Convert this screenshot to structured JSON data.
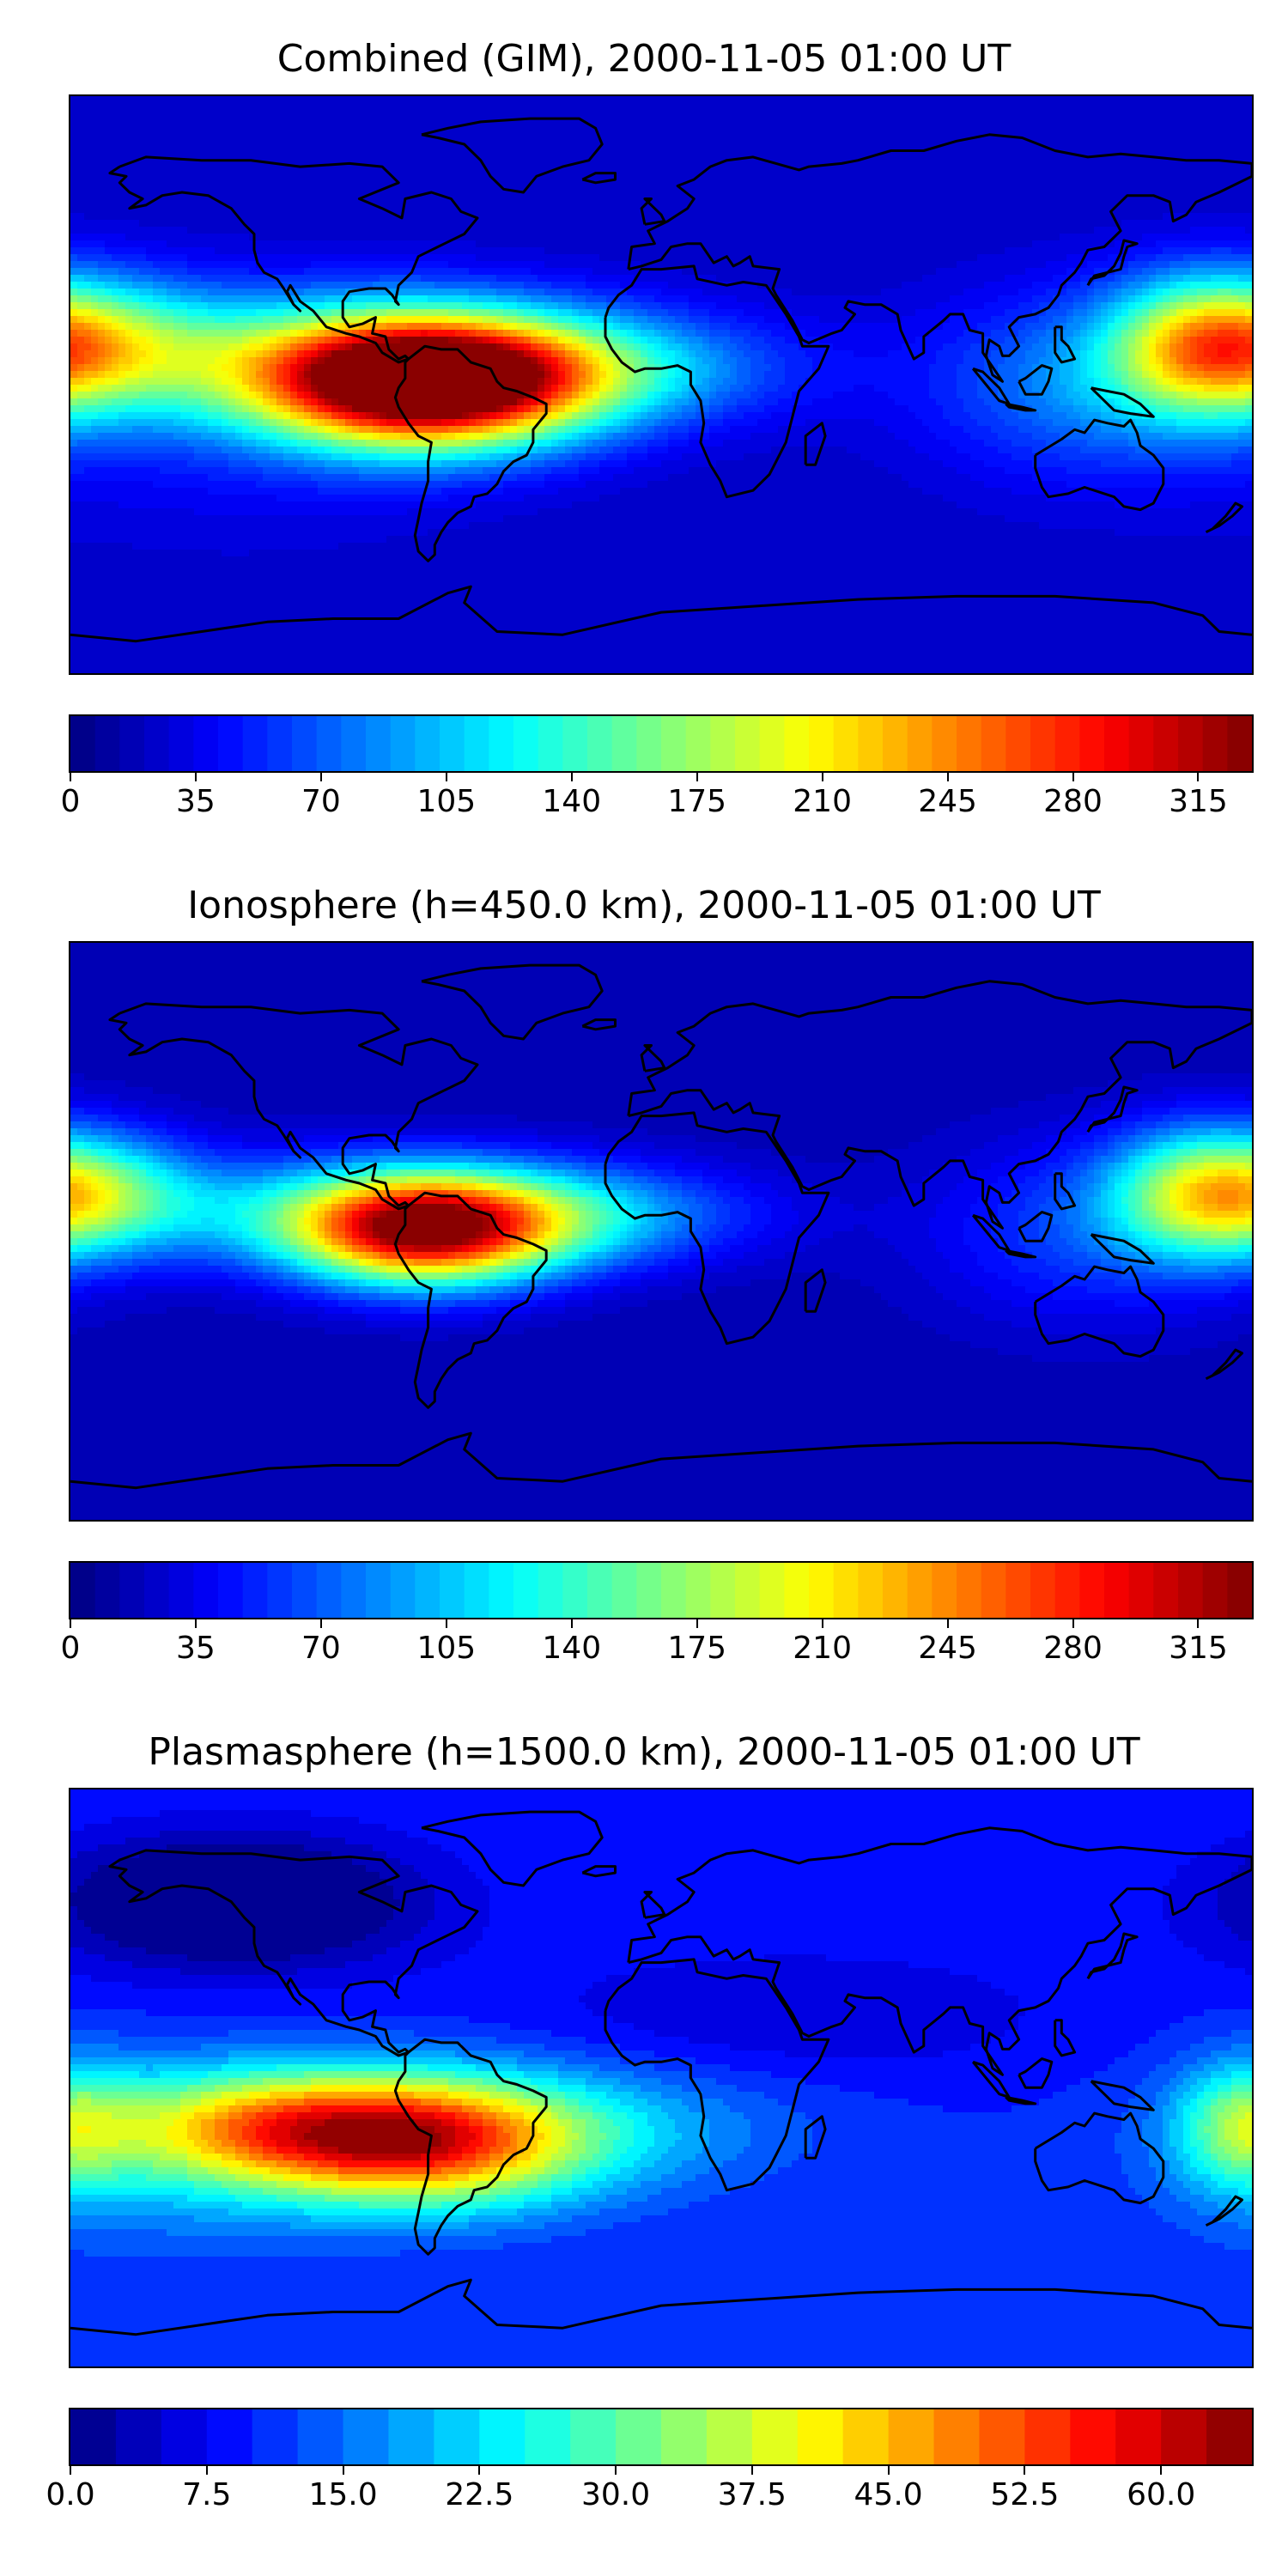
{
  "chart_data": [
    {
      "type": "heatmap",
      "title": "Combined (GIM), 2000-11-05 01:00 UT",
      "colormap": "jet",
      "colorbar_range": [
        0,
        330
      ],
      "colorbar_levels": 48,
      "colorbar_ticks": [
        "0",
        "35",
        "70",
        "105",
        "140",
        "175",
        "210",
        "245",
        "280",
        "315"
      ],
      "colorbar_tick_values": [
        0,
        35,
        70,
        105,
        140,
        175,
        210,
        245,
        280,
        315
      ],
      "background_value": 22,
      "features": [
        {
          "lon": -72,
          "lat": 0,
          "value": 330,
          "sigma_lon": 34,
          "sigma_lat": 14
        },
        {
          "lon": -100,
          "lat": 8,
          "value": 110,
          "sigma_lon": 55,
          "sigma_lat": 14
        },
        {
          "lon": -30,
          "lat": 5,
          "value": 105,
          "sigma_lon": 45,
          "sigma_lat": 12
        },
        {
          "lon": -170,
          "lat": 13,
          "value": 120,
          "sigma_lon": 25,
          "sigma_lat": 14
        },
        {
          "lon": 165,
          "lat": 12,
          "value": 160,
          "sigma_lon": 20,
          "sigma_lat": 15
        },
        {
          "lon": 130,
          "lat": 0,
          "value": 80,
          "sigma_lon": 35,
          "sigma_lat": 20
        },
        {
          "lon": -130,
          "lat": -10,
          "value": 45,
          "sigma_lon": 50,
          "sigma_lat": 25
        }
      ]
    },
    {
      "type": "heatmap",
      "title": "Ionosphere  (h=450.0 km), 2000-11-05 01:00 UT",
      "colormap": "jet",
      "colorbar_range": [
        0,
        330
      ],
      "colorbar_levels": 48,
      "colorbar_ticks": [
        "0",
        "35",
        "70",
        "105",
        "140",
        "175",
        "210",
        "245",
        "280",
        "315"
      ],
      "colorbar_tick_values": [
        0,
        35,
        70,
        105,
        140,
        175,
        210,
        245,
        280,
        315
      ],
      "background_value": 15,
      "features": [
        {
          "lon": -72,
          "lat": 0,
          "value": 265,
          "sigma_lon": 28,
          "sigma_lat": 12
        },
        {
          "lon": -100,
          "lat": 6,
          "value": 90,
          "sigma_lon": 50,
          "sigma_lat": 12
        },
        {
          "lon": -30,
          "lat": 5,
          "value": 95,
          "sigma_lon": 40,
          "sigma_lat": 11
        },
        {
          "lon": -170,
          "lat": 12,
          "value": 110,
          "sigma_lon": 22,
          "sigma_lat": 13
        },
        {
          "lon": 165,
          "lat": 12,
          "value": 150,
          "sigma_lon": 20,
          "sigma_lat": 14
        },
        {
          "lon": 130,
          "lat": 0,
          "value": 60,
          "sigma_lon": 35,
          "sigma_lat": 20
        }
      ]
    },
    {
      "type": "heatmap",
      "title": "Plasmasphere (h=1500.0 km), 2000-11-05 01:00 UT",
      "colormap": "jet",
      "colorbar_range": [
        0,
        65
      ],
      "colorbar_levels": 26,
      "colorbar_ticks": [
        "0.0",
        "7.5",
        "15.0",
        "22.5",
        "30.0",
        "37.5",
        "45.0",
        "52.5",
        "60.0"
      ],
      "colorbar_tick_values": [
        0,
        7.5,
        15,
        22.5,
        30,
        37.5,
        45,
        52.5,
        60
      ],
      "background_value": 10,
      "features": [
        {
          "lon": -72,
          "lat": -20,
          "value": 50,
          "sigma_lon": 35,
          "sigma_lat": 14
        },
        {
          "lon": -120,
          "lat": -15,
          "value": 36,
          "sigma_lon": 35,
          "sigma_lat": 12
        },
        {
          "lon": -20,
          "lat": -15,
          "value": 18,
          "sigma_lon": 45,
          "sigma_lat": 14
        },
        {
          "lon": 40,
          "lat": -18,
          "value": 10,
          "sigma_lon": 40,
          "sigma_lat": 12
        },
        {
          "lon": 178,
          "lat": -15,
          "value": 28,
          "sigma_lon": 15,
          "sigma_lat": 14
        },
        {
          "lon": -150,
          "lat": -25,
          "value": 18,
          "sigma_lon": 40,
          "sigma_lat": 20
        },
        {
          "lon": 40,
          "lat": 20,
          "value": 5,
          "sigma_lon": 60,
          "sigma_lat": 15
        },
        {
          "lon": -130,
          "lat": 55,
          "value": -6,
          "sigma_lon": 40,
          "sigma_lat": 15
        }
      ]
    }
  ],
  "coastline_color": "#000000"
}
